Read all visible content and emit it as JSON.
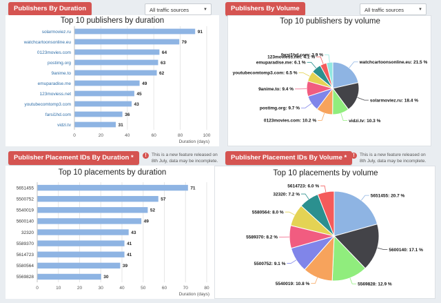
{
  "panels": [
    {
      "title": "Publishers By Duration",
      "dropdown": "All traffic sources"
    },
    {
      "title": "Publishers By Volume",
      "dropdown": "All traffic sources"
    },
    {
      "title": "Publisher Placement IDs By Duration *",
      "notice": "This is a new feature released on 8th July, data may be incomplete."
    },
    {
      "title": "Publisher Placement IDs By Volume *",
      "notice": "This is a new feature released on 8th July, data may be incomplete."
    }
  ],
  "chart_data": [
    {
      "type": "bar",
      "orientation": "horizontal",
      "title": "Top 10 publishers by duration",
      "xlabel": "Duration (days)",
      "xlim": [
        0,
        100
      ],
      "xticks": [
        "0",
        "20",
        "40",
        "60",
        "80",
        "100"
      ],
      "categories": [
        "solarmoviez.ru",
        "watchcartoonsonline.eu",
        "0123movies.com",
        "postimg.org",
        "9anime.to",
        "emuparadise.me",
        "123moviess.net",
        "youtubecomtomp3.com",
        "farsi1hd.com",
        "vidzi.tv"
      ],
      "values": [
        91,
        79,
        64,
        63,
        62,
        49,
        45,
        43,
        36,
        31
      ],
      "labels": [
        "91",
        "79",
        "64",
        "63",
        "62",
        "49",
        "45",
        "43",
        "36",
        "31"
      ],
      "bar_color": "#8eb4e3",
      "label_color": "#2f6ea8"
    },
    {
      "type": "pie",
      "title": "Top 10 publishers by volume",
      "categories": [
        "watchcartoonsonline.eu",
        "solarmoviez.ru",
        "vidzi.tv",
        "0123movies.com",
        "postimg.org",
        "9anime.to",
        "youtubecomtomp3.com",
        "emuparadise.me",
        "123moviess.net",
        "farsi1hd.com"
      ],
      "values": [
        21.5,
        18.4,
        10.3,
        10.2,
        9.7,
        9.4,
        6.5,
        6.1,
        4.1,
        3.9
      ],
      "labels": [
        "watchcartoonsonline.eu: 21.5 %",
        "solarmoviez.ru: 18.4 %",
        "vidzi.tv: 10.3 %",
        "0123movies.com: 10.2 %",
        "postimg.org: 9.7 %",
        "9anime.to: 9.4 %",
        "youtubecomtomp3.com: 6.5 %",
        "emuparadise.me: 6.1 %",
        "123moviess.net: 4.1 %",
        "farsi1hd.com: 3.9 %"
      ],
      "colors": [
        "#8eb4e3",
        "#434348",
        "#90ed7d",
        "#f7a35c",
        "#8085e9",
        "#f15c80",
        "#e4d354",
        "#2b908f",
        "#f45b5b",
        "#91e8e1"
      ]
    },
    {
      "type": "bar",
      "orientation": "horizontal",
      "title": "Top 10 placements by duration",
      "xlabel": "Duration (days)",
      "xlim": [
        0,
        80
      ],
      "xticks": [
        "0",
        "10",
        "20",
        "30",
        "40",
        "50",
        "60",
        "70",
        "80"
      ],
      "categories": [
        "5651455",
        "5500752",
        "5540019",
        "5600140",
        "32320",
        "5589370",
        "5614723",
        "5580564",
        "5569828"
      ],
      "values": [
        71,
        57,
        52,
        49,
        43,
        41,
        41,
        39,
        30
      ],
      "labels": [
        "71",
        "57",
        "52",
        "49",
        "43",
        "41",
        "41",
        "39",
        "30"
      ],
      "bar_color": "#8eb4e3",
      "label_color": "#333333"
    },
    {
      "type": "pie",
      "title": "Top 10 placements by volume",
      "categories": [
        "5651455",
        "5600140",
        "5569828",
        "5540019",
        "5500752",
        "5589370",
        "5580564",
        "32320",
        "5614723"
      ],
      "values": [
        20.7,
        17.1,
        12.9,
        10.8,
        9.1,
        8.2,
        8.0,
        7.2,
        6.0
      ],
      "labels": [
        "5651455: 20.7 %",
        "5600140: 17.1 %",
        "5569828: 12.9 %",
        "5540019: 10.8 %",
        "5500752: 9.1 %",
        "5589370: 8.2 %",
        "5580564: 8.0 %",
        "32320: 7.2 %",
        "5614723: 6.0 %"
      ],
      "colors": [
        "#8eb4e3",
        "#434348",
        "#90ed7d",
        "#f7a35c",
        "#8085e9",
        "#f15c80",
        "#e4d354",
        "#2b908f",
        "#f45b5b"
      ]
    }
  ]
}
